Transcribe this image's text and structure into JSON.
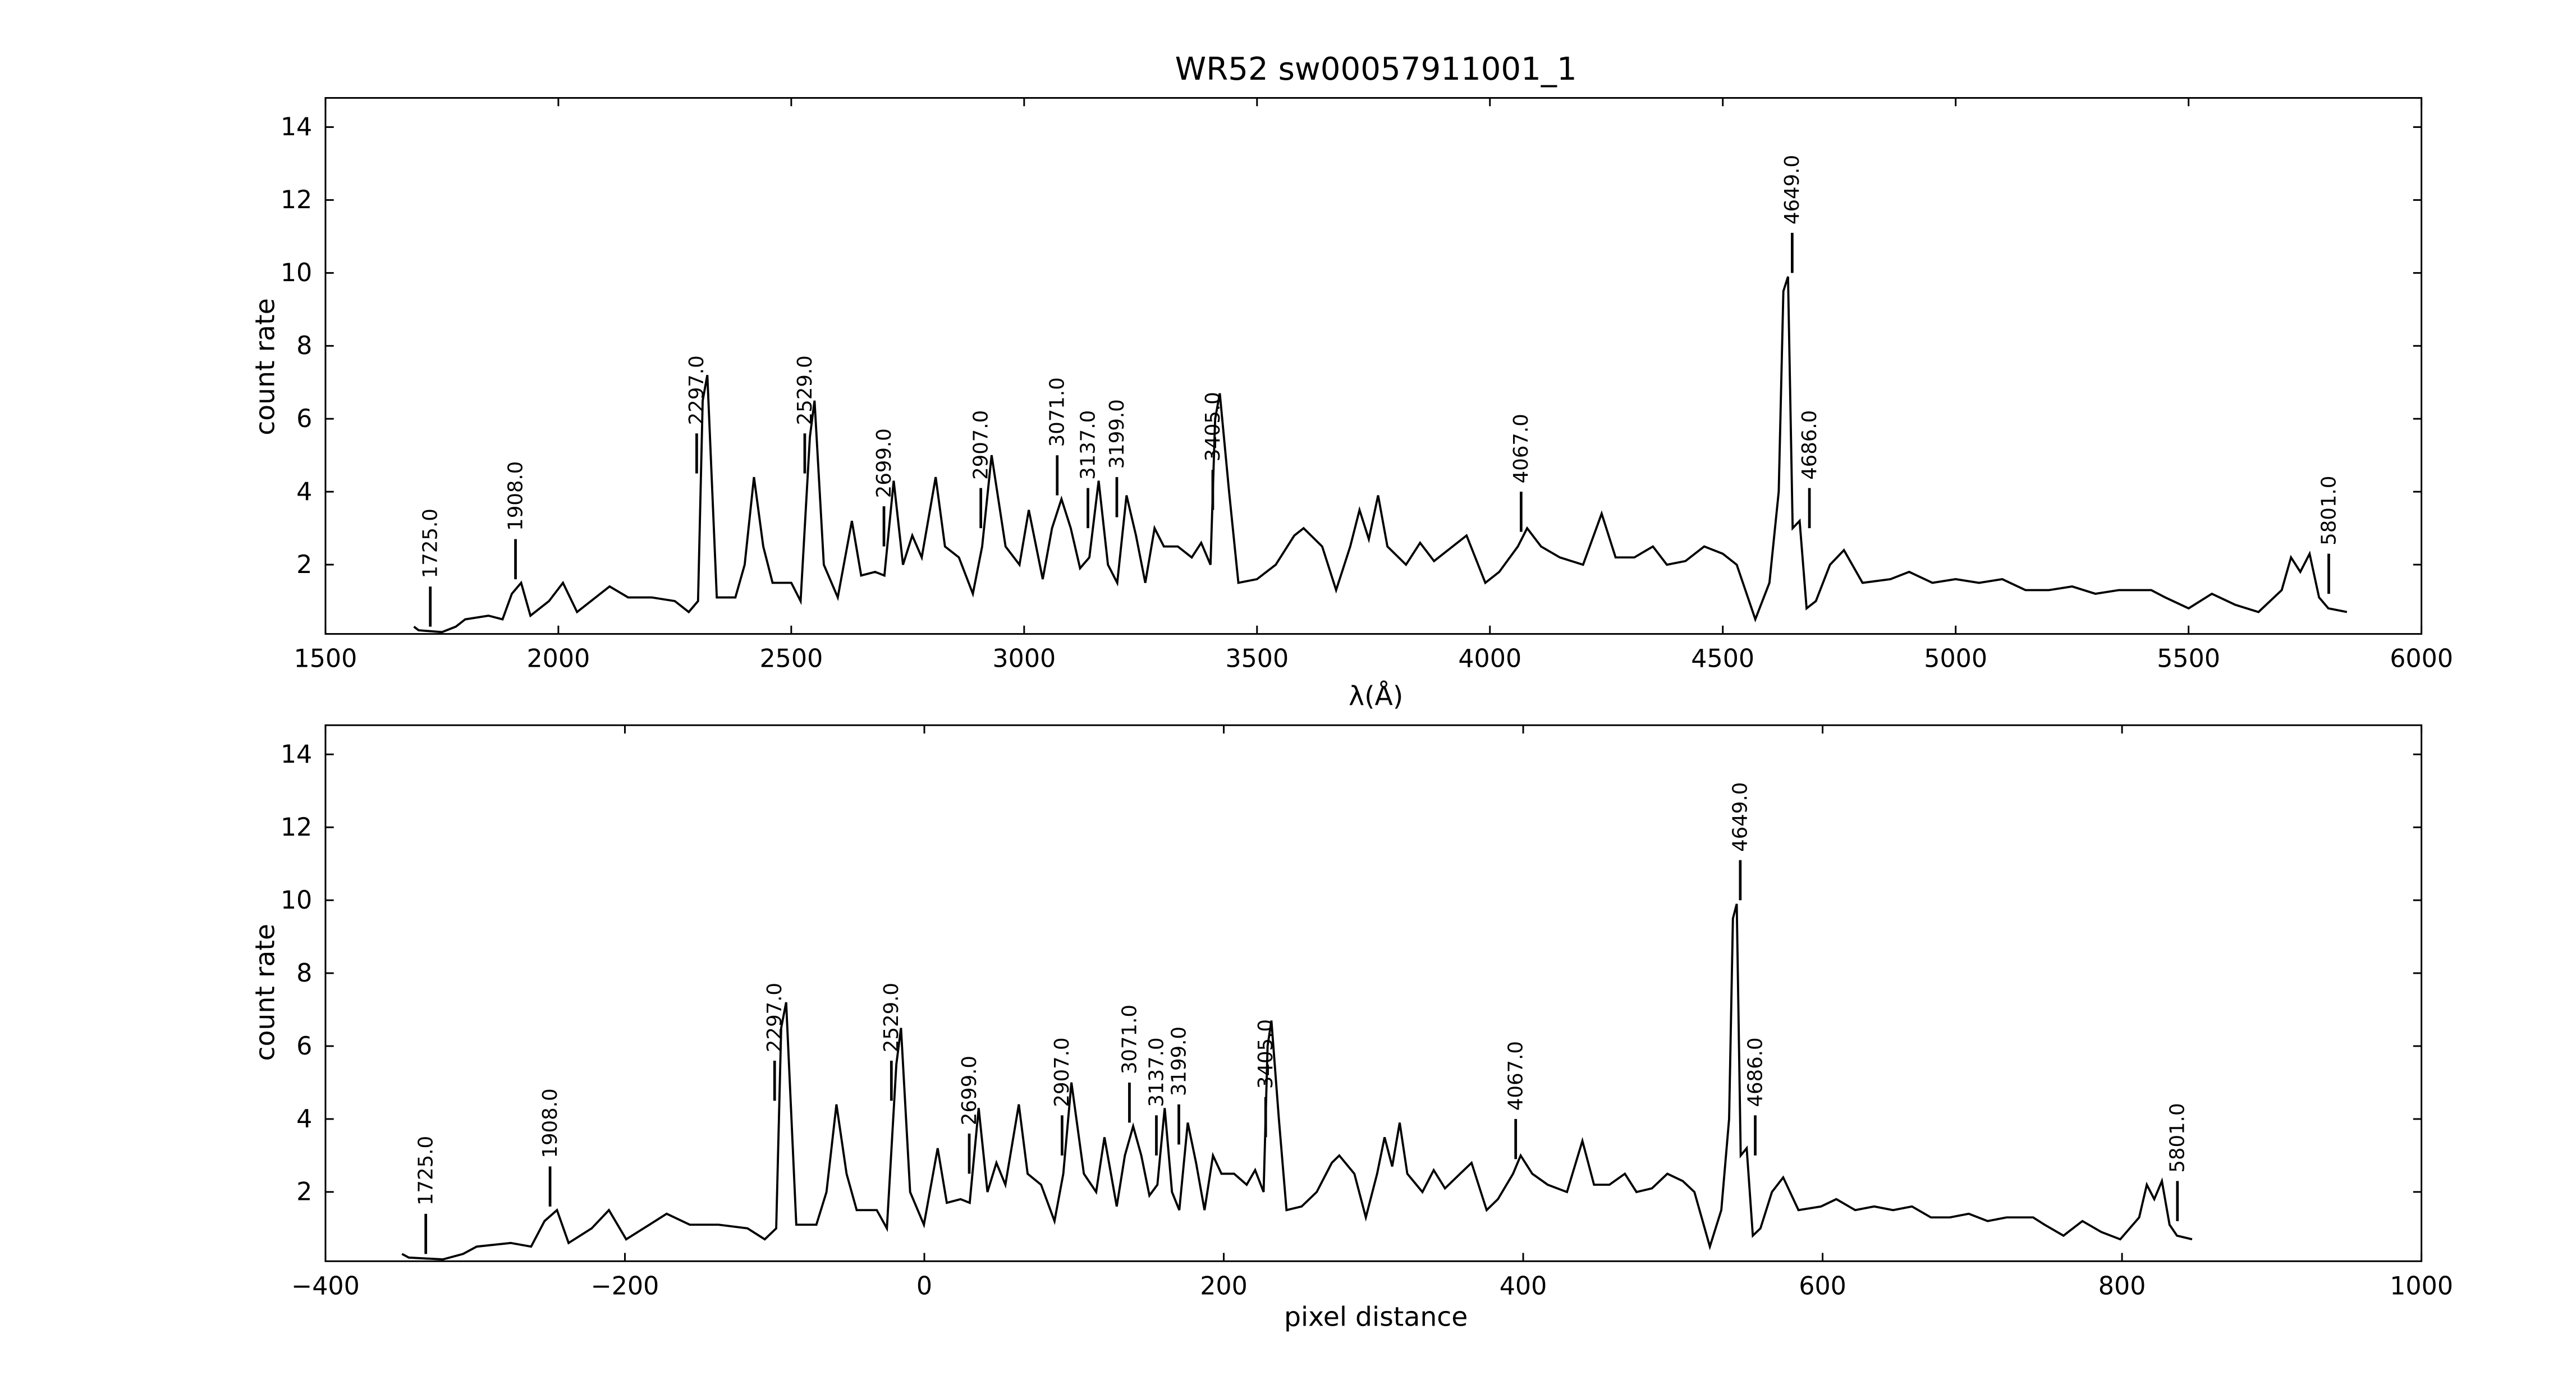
{
  "chart_data": [
    {
      "type": "line",
      "title": "WR52  sw00057911001_1",
      "xlabel": "λ(Å)",
      "ylabel": "count rate",
      "xlim": [
        1500,
        6000
      ],
      "ylim": [
        0.1,
        14.8
      ],
      "xticks": [
        "1500",
        "2000",
        "2500",
        "3000",
        "3500",
        "4000",
        "4500",
        "5000",
        "5500",
        "6000"
      ],
      "yticks": [
        "2",
        "4",
        "6",
        "8",
        "10",
        "12",
        "14"
      ]
    },
    {
      "type": "line",
      "xlabel": "pixel distance",
      "ylabel": "count rate",
      "xlim": [
        -400,
        1000
      ],
      "ylim": [
        0.1,
        14.8
      ],
      "xticks": [
        "−400",
        "−200",
        "0",
        "200",
        "400",
        "600",
        "800",
        "1000"
      ],
      "yticks": [
        "2",
        "4",
        "6",
        "8",
        "10",
        "12",
        "14"
      ]
    }
  ],
  "spectrum": {
    "wavelength": [
      1690,
      1700,
      1750,
      1780,
      1800,
      1850,
      1880,
      1900,
      1920,
      1940,
      1980,
      2010,
      2040,
      2080,
      2110,
      2150,
      2200,
      2250,
      2280,
      2300,
      2310,
      2320,
      2340,
      2380,
      2400,
      2420,
      2440,
      2460,
      2500,
      2520,
      2540,
      2550,
      2570,
      2600,
      2630,
      2650,
      2680,
      2700,
      2720,
      2740,
      2760,
      2780,
      2810,
      2830,
      2860,
      2890,
      2910,
      2930,
      2960,
      2990,
      3010,
      3040,
      3060,
      3080,
      3100,
      3120,
      3140,
      3160,
      3180,
      3200,
      3220,
      3240,
      3260,
      3280,
      3300,
      3330,
      3360,
      3380,
      3400,
      3410,
      3420,
      3440,
      3460,
      3500,
      3540,
      3580,
      3600,
      3640,
      3670,
      3700,
      3720,
      3740,
      3760,
      3780,
      3820,
      3850,
      3880,
      3920,
      3950,
      3990,
      4020,
      4060,
      4080,
      4110,
      4150,
      4200,
      4240,
      4270,
      4310,
      4350,
      4380,
      4420,
      4460,
      4500,
      4530,
      4570,
      4600,
      4620,
      4630,
      4640,
      4650,
      4665,
      4680,
      4700,
      4730,
      4760,
      4800,
      4860,
      4900,
      4950,
      5000,
      5050,
      5100,
      5150,
      5200,
      5250,
      5300,
      5350,
      5420,
      5450,
      5500,
      5550,
      5600,
      5650,
      5700,
      5720,
      5740,
      5760,
      5780,
      5800,
      5840
    ],
    "count_rate": [
      0.3,
      0.2,
      0.15,
      0.3,
      0.5,
      0.6,
      0.5,
      1.2,
      1.5,
      0.6,
      1.0,
      1.5,
      0.7,
      1.1,
      1.4,
      1.1,
      1.1,
      1.0,
      0.7,
      1.0,
      6.5,
      7.2,
      1.1,
      1.1,
      2.0,
      4.4,
      2.5,
      1.5,
      1.5,
      1.0,
      5.5,
      6.5,
      2.0,
      1.1,
      3.2,
      1.7,
      1.8,
      1.7,
      4.3,
      2.0,
      2.8,
      2.2,
      4.4,
      2.5,
      2.2,
      1.2,
      2.5,
      5.0,
      2.5,
      2.0,
      3.5,
      1.6,
      3.0,
      3.8,
      3.0,
      1.9,
      2.2,
      4.3,
      2.0,
      1.5,
      3.9,
      2.8,
      1.5,
      3.0,
      2.5,
      2.5,
      2.2,
      2.6,
      2.0,
      6.0,
      6.7,
      4.0,
      1.5,
      1.6,
      2.0,
      2.8,
      3.0,
      2.5,
      1.3,
      2.5,
      3.5,
      2.7,
      3.9,
      2.5,
      2.0,
      2.6,
      2.1,
      2.5,
      2.8,
      1.5,
      1.8,
      2.5,
      3.0,
      2.5,
      2.2,
      2.0,
      3.4,
      2.2,
      2.2,
      2.5,
      2.0,
      2.1,
      2.5,
      2.3,
      2.0,
      0.5,
      1.5,
      4.0,
      9.5,
      9.9,
      3.0,
      3.2,
      0.8,
      1.0,
      2.0,
      2.4,
      1.5,
      1.6,
      1.8,
      1.5,
      1.6,
      1.5,
      1.6,
      1.3,
      1.3,
      1.4,
      1.2,
      1.3,
      1.3,
      1.1,
      0.8,
      1.2,
      0.9,
      0.7,
      1.3,
      2.2,
      1.8,
      2.3,
      1.1,
      0.8,
      0.7
    ]
  },
  "lines": [
    {
      "label": "1725.0",
      "wavelength": 1725,
      "pixel": -333,
      "y": 0.3
    },
    {
      "label": "1908.0",
      "wavelength": 1908,
      "pixel": -250,
      "y": 1.6
    },
    {
      "label": "2297.0",
      "wavelength": 2297,
      "pixel": -100,
      "y": 4.5
    },
    {
      "label": "2529.0",
      "wavelength": 2529,
      "pixel": -22,
      "y": 4.5
    },
    {
      "label": "2699.0",
      "wavelength": 2699,
      "pixel": 30,
      "y": 2.5
    },
    {
      "label": "2907.0",
      "wavelength": 2907,
      "pixel": 92,
      "y": 3.0
    },
    {
      "label": "3071.0",
      "wavelength": 3071,
      "pixel": 137,
      "y": 3.9
    },
    {
      "label": "3137.0",
      "wavelength": 3137,
      "pixel": 155,
      "y": 3.0
    },
    {
      "label": "3199.0",
      "wavelength": 3199,
      "pixel": 170,
      "y": 3.3
    },
    {
      "label": "3405.0",
      "wavelength": 3405,
      "pixel": 228,
      "y": 3.5
    },
    {
      "label": "4067.0",
      "wavelength": 4067,
      "pixel": 395,
      "y": 2.9
    },
    {
      "label": "4649.0",
      "wavelength": 4649,
      "pixel": 545,
      "y": 10.0
    },
    {
      "label": "4686.0",
      "wavelength": 4686,
      "pixel": 555,
      "y": 3.0
    },
    {
      "label": "5801.0",
      "wavelength": 5801,
      "pixel": 837,
      "y": 1.2
    }
  ]
}
